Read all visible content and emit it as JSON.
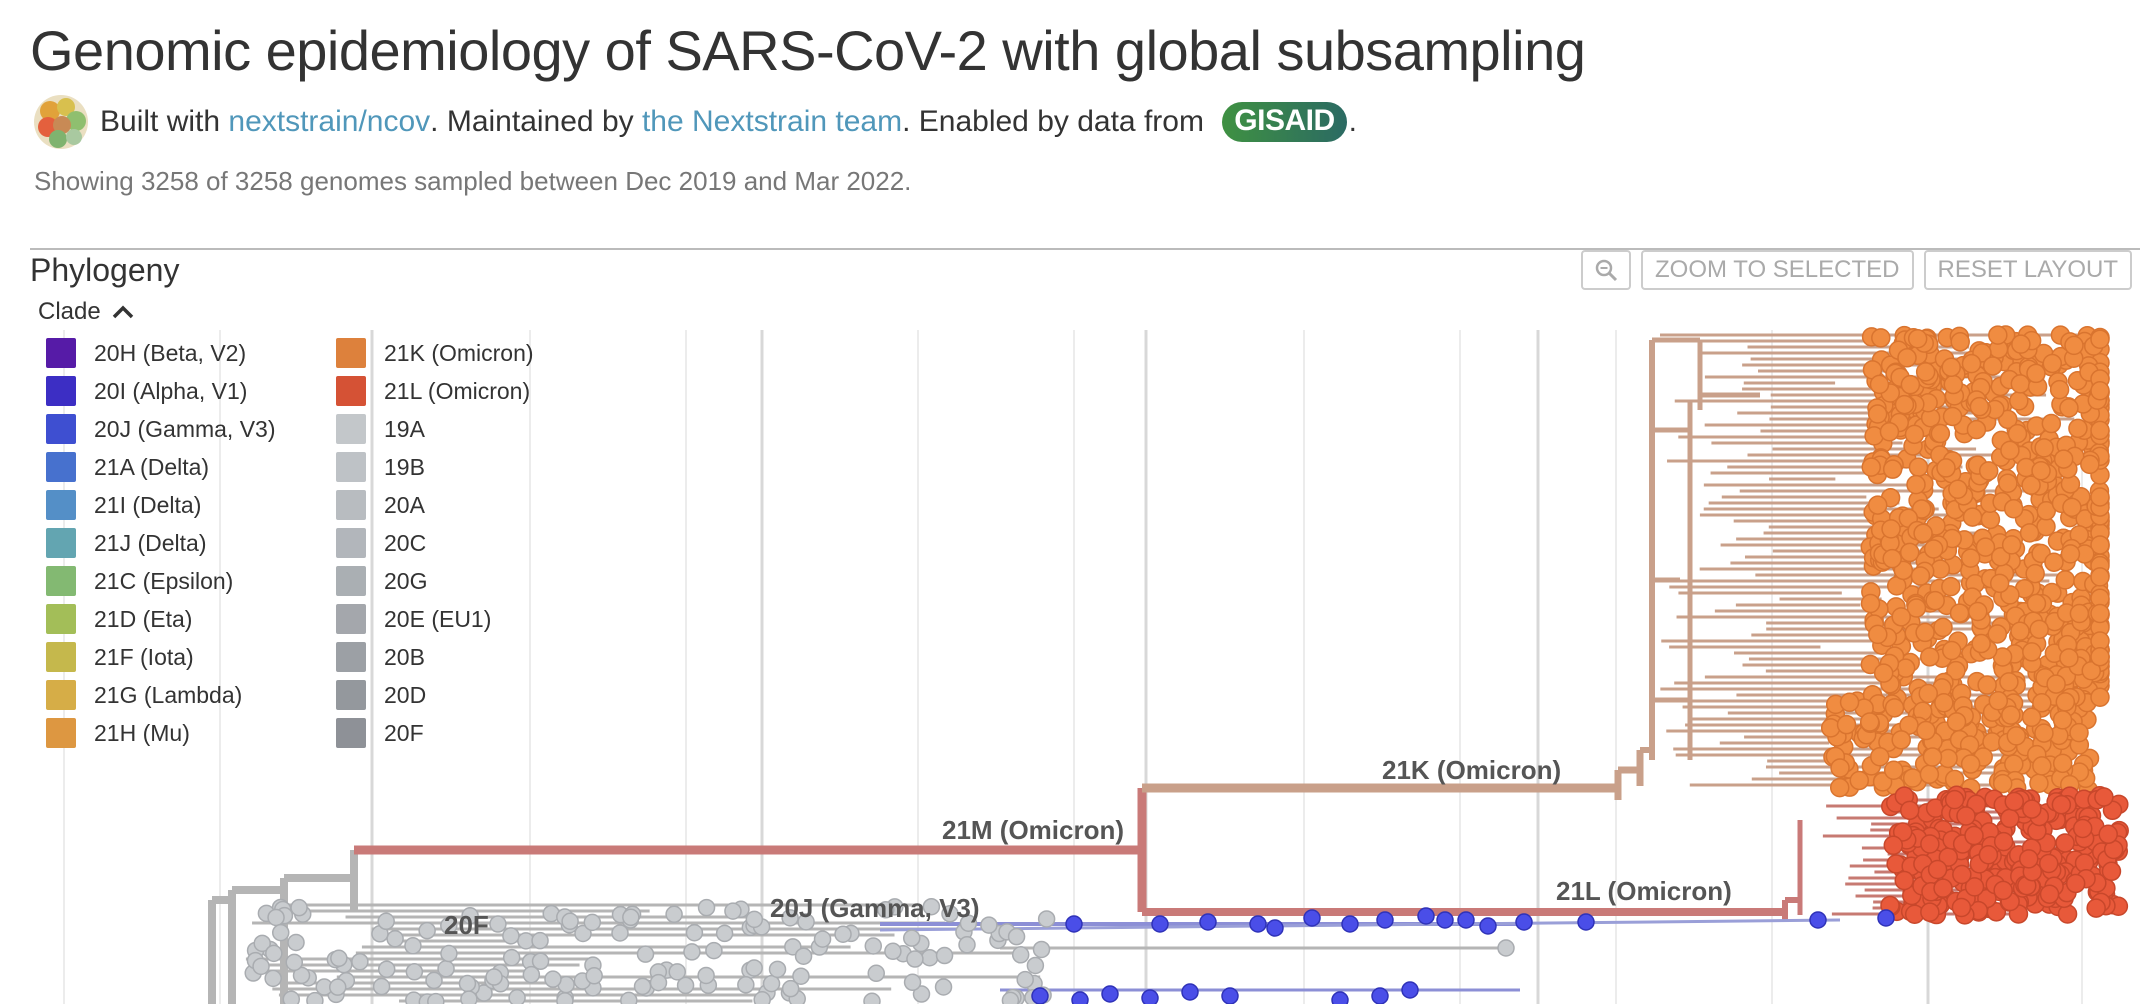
{
  "header": {
    "title": "Genomic epidemiology of SARS-CoV-2 with global subsampling",
    "built_with_prefix": "Built with ",
    "built_with_link": "nextstrain/ncov",
    "maintained_prefix": ". Maintained by ",
    "maintained_link": "the Nextstrain team",
    "enabled_prefix": ". Enabled by data from ",
    "gisaid_badge": "GISAID",
    "trailing": "."
  },
  "summary": "Showing 3258 of 3258 genomes sampled between Dec 2019 and Mar 2022.",
  "panel": {
    "title": "Phylogeny",
    "controls": {
      "zoom_icon": "zoom-out-magnifier-icon",
      "zoom_to_selected": "ZOOM TO SELECTED",
      "reset_layout": "RESET LAYOUT"
    }
  },
  "legend": {
    "title": "Clade",
    "toggle_icon": "chevron-up-icon",
    "items": [
      {
        "label": "20H (Beta, V2)",
        "color": "#5e1db6"
      },
      {
        "label": "20I (Alpha, V1)",
        "color": "#4132d5"
      },
      {
        "label": "20J (Gamma, V3)",
        "color": "#4356e3"
      },
      {
        "label": "21A (Delta)",
        "color": "#4d7be0"
      },
      {
        "label": "21I (Delta)",
        "color": "#5b9bd8"
      },
      {
        "label": "21J (Delta)",
        "color": "#6cb3c0"
      },
      {
        "label": "21C (Epsilon)",
        "color": "#8ec97c"
      },
      {
        "label": "21D (Eta)",
        "color": "#b1cf60"
      },
      {
        "label": "21F (Iota)",
        "color": "#d6c853"
      },
      {
        "label": "21G (Lambda)",
        "color": "#e9bc4d"
      },
      {
        "label": "21H (Mu)",
        "color": "#f0a447"
      },
      {
        "label": "21K (Omicron)",
        "color": "#f08c41"
      },
      {
        "label": "21L (Omicron)",
        "color": "#e8593a"
      },
      {
        "label": "19A",
        "color": "#d4d8dc"
      },
      {
        "label": "19B",
        "color": "#cfd3d7"
      },
      {
        "label": "20A",
        "color": "#c8ccd1"
      },
      {
        "label": "20C",
        "color": "#c1c6cb"
      },
      {
        "label": "20G",
        "color": "#b9bec3"
      },
      {
        "label": "20E (EU1)",
        "color": "#b2b6bb"
      },
      {
        "label": "20B",
        "color": "#aaaeb3"
      },
      {
        "label": "20D",
        "color": "#a1a5ab"
      },
      {
        "label": "20F",
        "color": "#9a9ea4"
      }
    ]
  },
  "tree": {
    "clade_labels": {
      "k": "21K (Omicron)",
      "m": "21M (Omicron)",
      "l": "21L (Omicron)",
      "j": "20J (Gamma, V3)",
      "f": "20F"
    },
    "colors": {
      "omicron_k_branch": "#c9a08a",
      "omicron_k_tip": "#f08c41",
      "omicron_l_tip": "#e8593a",
      "omicron_m_branch": "#c97a78",
      "grey_branch": "#b5b5b5",
      "grey_tip": "#c9cccf",
      "blue_tip": "#4a4ee8",
      "grid": "#e6e6e6"
    }
  }
}
